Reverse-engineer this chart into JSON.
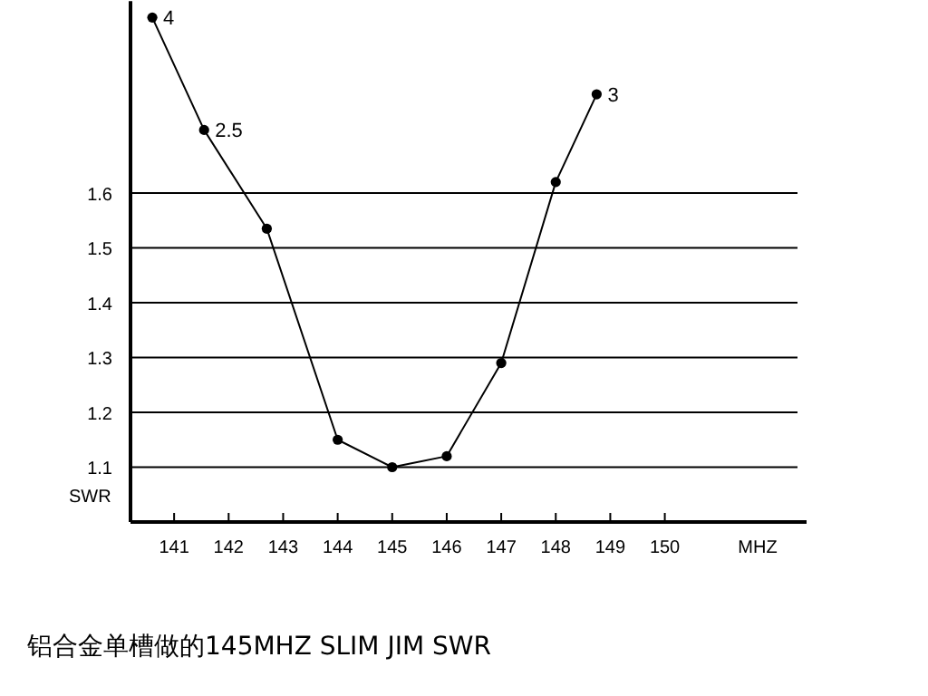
{
  "chart_data": {
    "type": "line",
    "title": "铝合金单槽做的145MHZ  SLIM JIM SWR",
    "xlabel": "MHZ",
    "ylabel": "SWR",
    "x": [
      140.6,
      141.55,
      142.7,
      144,
      145,
      146,
      147,
      148,
      148.75
    ],
    "series": [
      {
        "color": "#000000",
        "values": [
          1.92,
          1.715,
          1.535,
          1.15,
          1.1,
          1.12,
          1.29,
          1.62,
          1.78
        ]
      }
    ],
    "annotations": [
      {
        "text": "4",
        "x": 140.6,
        "y": 1.92
      },
      {
        "text": "2.5",
        "x": 141.55,
        "y": 1.715
      },
      {
        "text": "3",
        "x": 148.75,
        "y": 1.78
      }
    ],
    "xlim": [
      140.2,
      152.6
    ],
    "xticks": [
      {
        "value": 141,
        "label": "141"
      },
      {
        "value": 142,
        "label": "142"
      },
      {
        "value": 143,
        "label": "143"
      },
      {
        "value": 144,
        "label": "144"
      },
      {
        "value": 145,
        "label": "145"
      },
      {
        "value": 146,
        "label": "146"
      },
      {
        "value": 147,
        "label": "147"
      },
      {
        "value": 148,
        "label": "148"
      },
      {
        "value": 149,
        "label": "149"
      },
      {
        "value": 150,
        "label": "150"
      }
    ],
    "ylim": [
      1,
      1.95
    ],
    "yticks": [
      1.1,
      1.2,
      1.3,
      1.4,
      1.5,
      1.6
    ],
    "grid": "y",
    "marker": "circle",
    "line_style": "solid"
  }
}
